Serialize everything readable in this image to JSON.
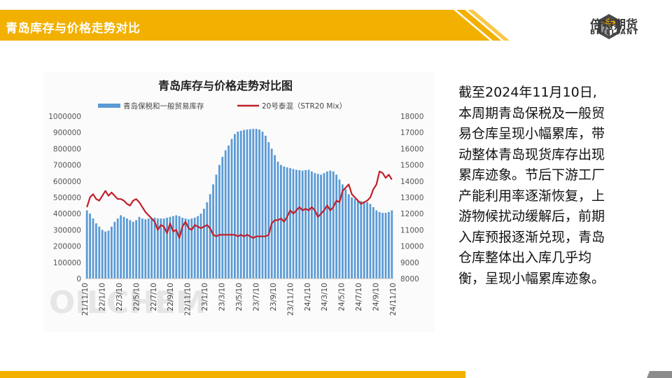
{
  "header": {
    "title": "青岛库存与价格走势对比",
    "logo_cn": "倍特期货",
    "logo_en": "BRILLIANT",
    "colors": {
      "accent": "#f2b000",
      "accent_dark": "#e0a000",
      "logo_grey": "#3a3a3a"
    }
  },
  "body_text": "截至2024年11月10日,本周期青岛保税及一般贸易仓库呈现小幅累库，带动整体青岛现货库存出现累库迹象。节后下游工厂产能利用率逐渐恢复，上游物候扰动缓解后，前期入库预报逐渐兑现，青岛仓库整体出入库几乎均衡，呈现小幅累库迹象。",
  "watermark_text": "OILCHEM",
  "chart_data": {
    "type": "bar+line",
    "title": "青岛库存与价格走势对比图",
    "legend_position": "top",
    "grid": false,
    "y_left": {
      "min": 0,
      "max": 1000000,
      "ticks": [
        0,
        100000,
        200000,
        300000,
        400000,
        500000,
        600000,
        700000,
        800000,
        900000,
        1000000
      ]
    },
    "y_right": {
      "min": 8000,
      "max": 18000,
      "ticks": [
        8000,
        9000,
        10000,
        11000,
        12000,
        13000,
        14000,
        15000,
        16000,
        17000,
        18000
      ]
    },
    "x_tick_labels": [
      "21/11/10",
      "22/1/10",
      "22/3/10",
      "22/5/10",
      "22/7/10",
      "22/9/10",
      "22/11/10",
      "23/1/10",
      "23/3/10",
      "23/5/10",
      "23/7/10",
      "23/9/10",
      "23/11/10",
      "24/1/10",
      "24/3/10",
      "24/5/10",
      "24/7/10",
      "24/9/10",
      "24/11/10"
    ],
    "series": [
      {
        "name": "青岛保税和一般贸易库存",
        "type": "bar",
        "axis": "left",
        "color": "#5b9bd5",
        "values": [
          420000,
          400000,
          370000,
          340000,
          320000,
          300000,
          290000,
          295000,
          320000,
          350000,
          370000,
          390000,
          380000,
          370000,
          360000,
          350000,
          360000,
          380000,
          370000,
          365000,
          370000,
          370000,
          375000,
          370000,
          370000,
          370000,
          375000,
          380000,
          385000,
          390000,
          385000,
          375000,
          370000,
          365000,
          370000,
          375000,
          385000,
          400000,
          430000,
          470000,
          520000,
          580000,
          640000,
          700000,
          750000,
          790000,
          820000,
          860000,
          890000,
          905000,
          910000,
          915000,
          918000,
          920000,
          922000,
          922000,
          918000,
          905000,
          880000,
          840000,
          800000,
          760000,
          720000,
          700000,
          690000,
          685000,
          680000,
          675000,
          670000,
          668000,
          665000,
          668000,
          670000,
          660000,
          650000,
          645000,
          640000,
          650000,
          660000,
          665000,
          660000,
          640000,
          610000,
          580000,
          550000,
          520000,
          500000,
          490000,
          480000,
          478000,
          475000,
          470000,
          460000,
          440000,
          420000,
          410000,
          405000,
          405000,
          410000,
          420000
        ]
      },
      {
        "name": "20号泰混（STR20 Mix）",
        "type": "line",
        "axis": "right",
        "color": "#c0202a",
        "values": [
          12400,
          13000,
          13200,
          12900,
          12800,
          13100,
          13400,
          13100,
          13300,
          13100,
          12900,
          12900,
          12800,
          12600,
          12500,
          12800,
          12900,
          12700,
          12400,
          12100,
          11900,
          11700,
          11500,
          11000,
          11300,
          11200,
          10800,
          11400,
          10900,
          11000,
          10500,
          11200,
          11500,
          11100,
          11000,
          11300,
          11200,
          11100,
          11200,
          11300,
          11100,
          10700,
          10600,
          10700,
          10700,
          10700,
          10700,
          10700,
          10700,
          10600,
          10700,
          10600,
          10700,
          10600,
          10500,
          10600,
          10600,
          10600,
          10600,
          10700,
          11400,
          11600,
          11600,
          11700,
          11500,
          11800,
          12200,
          12000,
          12200,
          12400,
          12200,
          12300,
          12200,
          12400,
          12200,
          11800,
          12000,
          12200,
          12500,
          12200,
          12400,
          12800,
          12700,
          13400,
          13600,
          13800,
          13200,
          13000,
          12800,
          12600,
          12700,
          12800,
          13000,
          13500,
          13800,
          14600,
          14500,
          14200,
          14400,
          14100
        ]
      }
    ]
  }
}
